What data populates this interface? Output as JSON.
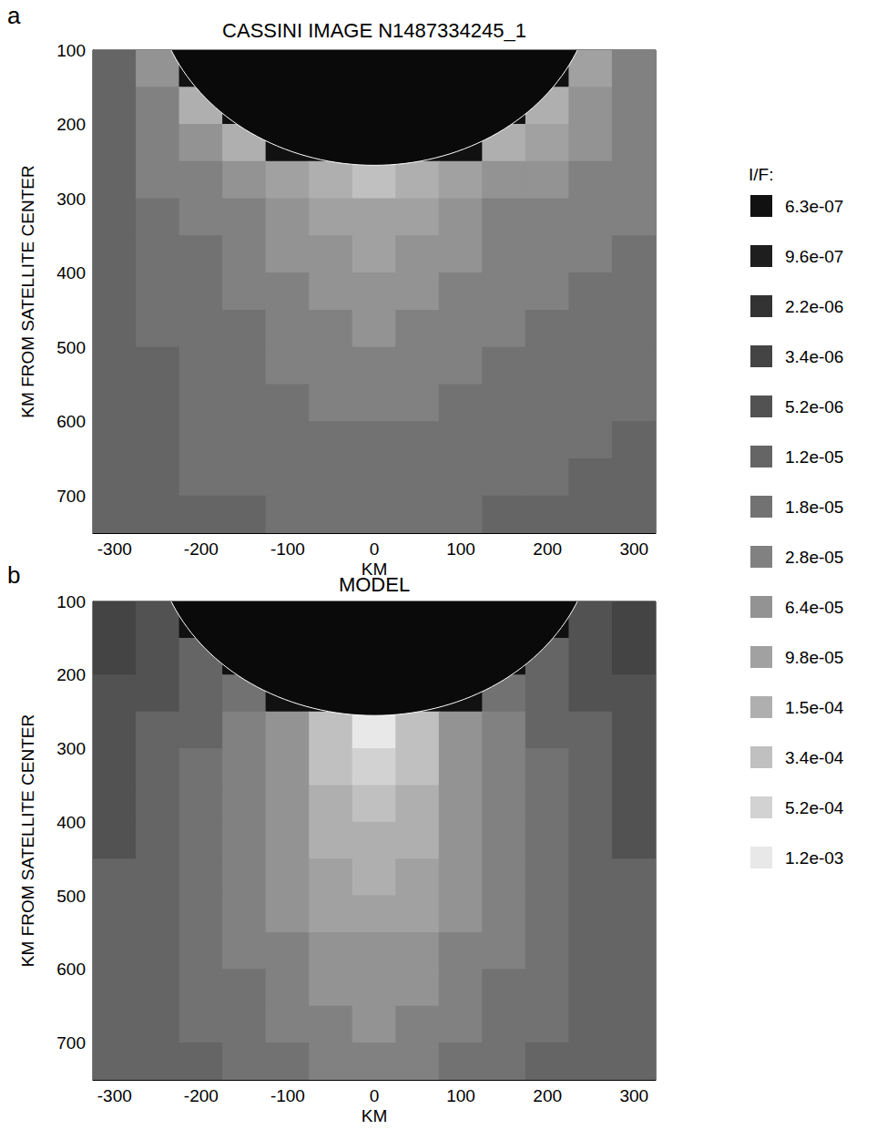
{
  "chart_data": [
    {
      "type": "heatmap",
      "panel": "a",
      "title": "CASSINI IMAGE N1487334245_1",
      "xlabel": "KM",
      "ylabel": "KM FROM SATELLITE CENTER",
      "xlim": [
        -325,
        325
      ],
      "ylim": [
        100,
        750
      ],
      "xticks": [
        -300,
        -200,
        -100,
        0,
        100,
        200,
        300
      ],
      "yticks": [
        100,
        200,
        300,
        400,
        500,
        600,
        700
      ],
      "x": [
        -300,
        -250,
        -200,
        -150,
        -100,
        -50,
        0,
        50,
        100,
        150,
        200,
        250,
        300
      ],
      "y": [
        125,
        175,
        225,
        275,
        325,
        375,
        425,
        475,
        525,
        575,
        625,
        675,
        725
      ],
      "cells": [
        [
          1.2e-05,
          6.4e-05,
          6.3e-07,
          6.3e-07,
          6.3e-07,
          6.3e-07,
          6.3e-07,
          6.3e-07,
          6.3e-07,
          6.3e-07,
          6.3e-07,
          9.8e-05,
          2.8e-05
        ],
        [
          1.2e-05,
          2.8e-05,
          0.00015,
          6.3e-07,
          6.3e-07,
          6.3e-07,
          6.3e-07,
          6.3e-07,
          6.3e-07,
          6.3e-07,
          0.00015,
          6.4e-05,
          2.8e-05
        ],
        [
          1.2e-05,
          2.8e-05,
          6.4e-05,
          0.00015,
          6.3e-07,
          6.3e-07,
          6.3e-07,
          6.3e-07,
          6.3e-07,
          0.00015,
          9.8e-05,
          6.4e-05,
          2.8e-05
        ],
        [
          1.2e-05,
          2.8e-05,
          2.8e-05,
          6.4e-05,
          9.8e-05,
          0.00015,
          0.00034,
          0.00015,
          9.8e-05,
          6.4e-05,
          6.4e-05,
          2.8e-05,
          2.8e-05
        ],
        [
          1.2e-05,
          1.8e-05,
          2.8e-05,
          2.8e-05,
          6.4e-05,
          9.8e-05,
          9.8e-05,
          9.8e-05,
          6.4e-05,
          2.8e-05,
          2.8e-05,
          2.8e-05,
          2.8e-05
        ],
        [
          1.2e-05,
          1.8e-05,
          1.8e-05,
          2.8e-05,
          6.4e-05,
          6.4e-05,
          9.8e-05,
          6.4e-05,
          6.4e-05,
          2.8e-05,
          2.8e-05,
          2.8e-05,
          1.8e-05
        ],
        [
          1.2e-05,
          1.8e-05,
          1.8e-05,
          2.8e-05,
          2.8e-05,
          6.4e-05,
          6.4e-05,
          6.4e-05,
          2.8e-05,
          2.8e-05,
          2.8e-05,
          1.8e-05,
          1.8e-05
        ],
        [
          1.2e-05,
          1.8e-05,
          1.8e-05,
          1.8e-05,
          2.8e-05,
          2.8e-05,
          6.4e-05,
          2.8e-05,
          2.8e-05,
          2.8e-05,
          1.8e-05,
          1.8e-05,
          1.8e-05
        ],
        [
          1.2e-05,
          1.2e-05,
          1.8e-05,
          1.8e-05,
          2.8e-05,
          2.8e-05,
          2.8e-05,
          2.8e-05,
          2.8e-05,
          1.8e-05,
          1.8e-05,
          1.8e-05,
          1.8e-05
        ],
        [
          1.2e-05,
          1.2e-05,
          1.8e-05,
          1.8e-05,
          1.8e-05,
          2.8e-05,
          2.8e-05,
          2.8e-05,
          1.8e-05,
          1.8e-05,
          1.8e-05,
          1.8e-05,
          1.8e-05
        ],
        [
          1.2e-05,
          1.2e-05,
          1.8e-05,
          1.8e-05,
          1.8e-05,
          1.8e-05,
          1.8e-05,
          1.8e-05,
          1.8e-05,
          1.8e-05,
          1.8e-05,
          1.8e-05,
          1.2e-05
        ],
        [
          1.2e-05,
          1.2e-05,
          1.8e-05,
          1.8e-05,
          1.8e-05,
          1.8e-05,
          1.8e-05,
          1.8e-05,
          1.8e-05,
          1.8e-05,
          1.8e-05,
          1.2e-05,
          1.2e-05
        ],
        [
          1.2e-05,
          1.2e-05,
          1.2e-05,
          1.2e-05,
          1.8e-05,
          1.8e-05,
          1.8e-05,
          1.8e-05,
          1.8e-05,
          1.2e-05,
          1.2e-05,
          1.2e-05,
          1.2e-05
        ]
      ],
      "disc": {
        "center": [
          0,
          0
        ],
        "radius": 255
      }
    },
    {
      "type": "heatmap",
      "panel": "b",
      "title": "MODEL",
      "xlabel": "KM",
      "ylabel": "KM FROM SATELLITE CENTER",
      "xlim": [
        -325,
        325
      ],
      "ylim": [
        100,
        750
      ],
      "xticks": [
        -300,
        -200,
        -100,
        0,
        100,
        200,
        300
      ],
      "yticks": [
        100,
        200,
        300,
        400,
        500,
        600,
        700
      ],
      "x": [
        -300,
        -250,
        -200,
        -150,
        -100,
        -50,
        0,
        50,
        100,
        150,
        200,
        250,
        300
      ],
      "y": [
        125,
        175,
        225,
        275,
        325,
        375,
        425,
        475,
        525,
        575,
        625,
        675,
        725
      ],
      "cells": [
        [
          3.4e-06,
          5.2e-06,
          6.3e-07,
          6.3e-07,
          6.3e-07,
          6.3e-07,
          6.3e-07,
          6.3e-07,
          6.3e-07,
          6.3e-07,
          6.3e-07,
          5.2e-06,
          3.4e-06
        ],
        [
          3.4e-06,
          5.2e-06,
          1.2e-05,
          6.3e-07,
          6.3e-07,
          6.3e-07,
          6.3e-07,
          6.3e-07,
          6.3e-07,
          6.3e-07,
          1.2e-05,
          5.2e-06,
          3.4e-06
        ],
        [
          5.2e-06,
          5.2e-06,
          1.2e-05,
          1.8e-05,
          6.3e-07,
          6.3e-07,
          6.3e-07,
          6.3e-07,
          6.3e-07,
          1.8e-05,
          1.2e-05,
          5.2e-06,
          5.2e-06
        ],
        [
          5.2e-06,
          1.2e-05,
          1.2e-05,
          2.8e-05,
          6.4e-05,
          0.00034,
          0.0012,
          0.00034,
          6.4e-05,
          2.8e-05,
          1.2e-05,
          1.2e-05,
          5.2e-06
        ],
        [
          5.2e-06,
          1.2e-05,
          1.8e-05,
          2.8e-05,
          6.4e-05,
          0.00034,
          0.00052,
          0.00034,
          6.4e-05,
          2.8e-05,
          1.8e-05,
          1.2e-05,
          5.2e-06
        ],
        [
          5.2e-06,
          1.2e-05,
          1.8e-05,
          2.8e-05,
          6.4e-05,
          0.00015,
          0.00034,
          0.00015,
          6.4e-05,
          2.8e-05,
          1.8e-05,
          1.2e-05,
          5.2e-06
        ],
        [
          5.2e-06,
          1.2e-05,
          1.8e-05,
          2.8e-05,
          6.4e-05,
          0.00015,
          0.00015,
          0.00015,
          6.4e-05,
          2.8e-05,
          1.8e-05,
          1.2e-05,
          5.2e-06
        ],
        [
          1.2e-05,
          1.2e-05,
          1.8e-05,
          2.8e-05,
          6.4e-05,
          9.8e-05,
          0.00015,
          9.8e-05,
          6.4e-05,
          2.8e-05,
          1.8e-05,
          1.2e-05,
          1.2e-05
        ],
        [
          1.2e-05,
          1.2e-05,
          1.8e-05,
          2.8e-05,
          6.4e-05,
          9.8e-05,
          9.8e-05,
          9.8e-05,
          6.4e-05,
          2.8e-05,
          1.8e-05,
          1.2e-05,
          1.2e-05
        ],
        [
          1.2e-05,
          1.2e-05,
          1.8e-05,
          2.8e-05,
          2.8e-05,
          6.4e-05,
          6.4e-05,
          6.4e-05,
          2.8e-05,
          2.8e-05,
          1.8e-05,
          1.2e-05,
          1.2e-05
        ],
        [
          1.2e-05,
          1.2e-05,
          1.8e-05,
          1.8e-05,
          2.8e-05,
          6.4e-05,
          6.4e-05,
          6.4e-05,
          2.8e-05,
          1.8e-05,
          1.8e-05,
          1.2e-05,
          1.2e-05
        ],
        [
          1.2e-05,
          1.2e-05,
          1.8e-05,
          1.8e-05,
          2.8e-05,
          2.8e-05,
          6.4e-05,
          2.8e-05,
          2.8e-05,
          1.8e-05,
          1.8e-05,
          1.2e-05,
          1.2e-05
        ],
        [
          1.2e-05,
          1.2e-05,
          1.2e-05,
          1.8e-05,
          1.8e-05,
          2.8e-05,
          2.8e-05,
          2.8e-05,
          1.8e-05,
          1.8e-05,
          1.2e-05,
          1.2e-05,
          1.2e-05
        ]
      ],
      "disc": {
        "center": [
          0,
          0
        ],
        "radius": 255
      }
    }
  ],
  "colorbar": {
    "title": "I/F:",
    "levels": [
      {
        "value": 6.3e-07,
        "label": "6.3e-07",
        "color": "#111111"
      },
      {
        "value": 9.6e-07,
        "label": "9.6e-07",
        "color": "#1e1e1e"
      },
      {
        "value": 2.2e-06,
        "label": "2.2e-06",
        "color": "#333333"
      },
      {
        "value": 3.4e-06,
        "label": "3.4e-06",
        "color": "#444444"
      },
      {
        "value": 5.2e-06,
        "label": "5.2e-06",
        "color": "#525252"
      },
      {
        "value": 1.2e-05,
        "label": "1.2e-05",
        "color": "#656565"
      },
      {
        "value": 1.8e-05,
        "label": "1.8e-05",
        "color": "#727272"
      },
      {
        "value": 2.8e-05,
        "label": "2.8e-05",
        "color": "#818181"
      },
      {
        "value": 6.4e-05,
        "label": "6.4e-05",
        "color": "#939393"
      },
      {
        "value": 9.8e-05,
        "label": "9.8e-05",
        "color": "#a1a1a1"
      },
      {
        "value": 0.00015,
        "label": "1.5e-04",
        "color": "#afafaf"
      },
      {
        "value": 0.00034,
        "label": "3.4e-04",
        "color": "#c0c0c0"
      },
      {
        "value": 0.00052,
        "label": "5.2e-04",
        "color": "#d2d2d2"
      },
      {
        "value": 0.0012,
        "label": "1.2e-03",
        "color": "#e8e8e8"
      }
    ]
  }
}
